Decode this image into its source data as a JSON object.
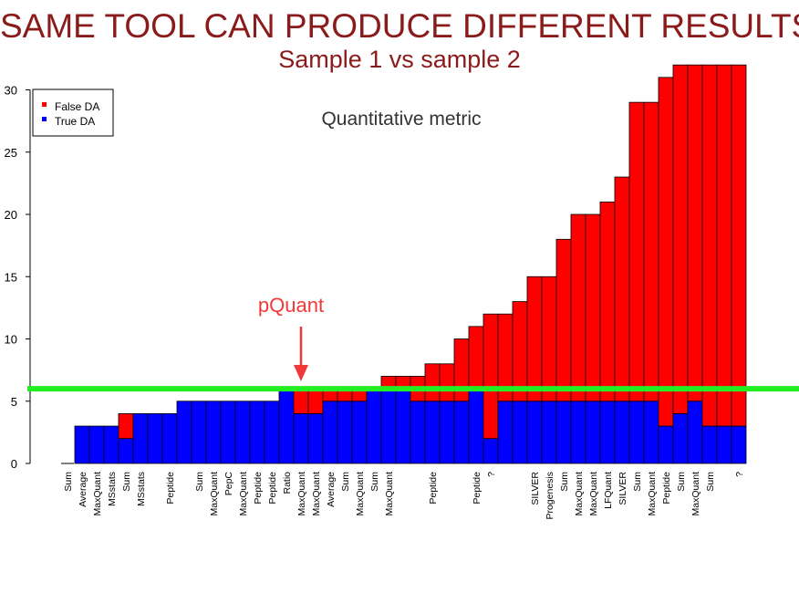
{
  "title": "SAME TOOL CAN PRODUCE DIFFERENT RESULTS",
  "subtitle": "Sample 1 vs sample 2",
  "annotations": {
    "metric": "Quantitative metric",
    "pointer": "pQuant"
  },
  "colors": {
    "false_da": "#ff0000",
    "true_da": "#0000ff",
    "threshold_line": "#22ee22",
    "title": "#8b1a1a",
    "pointer": "#f03a3a"
  },
  "chart_data": {
    "type": "bar",
    "stacked": true,
    "ylim": [
      0,
      32
    ],
    "yticks": [
      0,
      5,
      10,
      15,
      20,
      25,
      30
    ],
    "threshold": 6,
    "legend": {
      "position": "top-left",
      "entries": [
        "False DA",
        "True DA"
      ]
    },
    "categories": [
      "Sum",
      "Average",
      "MaxQuant",
      "MSstats",
      "Sum",
      "MSstats",
      "",
      "Peptide",
      "",
      "Sum",
      "MaxQuant",
      "PepC",
      "MaxQuant",
      "Peptide",
      "Peptide",
      "Ratio",
      "MaxQuant",
      "MaxQuant",
      "Average",
      "Sum",
      "MaxQuant",
      "Sum",
      "MaxQuant",
      "",
      "",
      "Peptide",
      "",
      "",
      "Peptide",
      "?",
      "",
      "",
      "SILVER",
      "Progenesis",
      "Sum",
      "MaxQuant",
      "MaxQuant",
      "LFQuant",
      "SILVER",
      "Sum",
      "MaxQuant",
      "Peptide",
      "Sum",
      "MaxQuant",
      "Sum",
      "",
      "?"
    ],
    "series": [
      {
        "name": "True DA",
        "values": [
          0,
          3,
          3,
          3,
          2,
          4,
          4,
          4,
          5,
          5,
          5,
          5,
          5,
          5,
          5,
          6,
          4,
          4,
          5,
          5,
          5,
          6,
          6,
          6,
          5,
          5,
          5,
          5,
          6,
          2,
          5,
          5,
          5,
          5,
          5,
          5,
          5,
          5,
          5,
          5,
          5,
          3,
          4,
          5,
          3,
          3,
          3
        ]
      },
      {
        "name": "False DA",
        "values": [
          0,
          0,
          0,
          0,
          2,
          0,
          0,
          0,
          0,
          0,
          0,
          0,
          0,
          0,
          0,
          0,
          2,
          2,
          1,
          1,
          1,
          0,
          1,
          1,
          2,
          3,
          3,
          5,
          5,
          10,
          7,
          8,
          10,
          10,
          13,
          15,
          15,
          16,
          18,
          24,
          24,
          28,
          28,
          27,
          29,
          29,
          29
        ]
      }
    ]
  }
}
